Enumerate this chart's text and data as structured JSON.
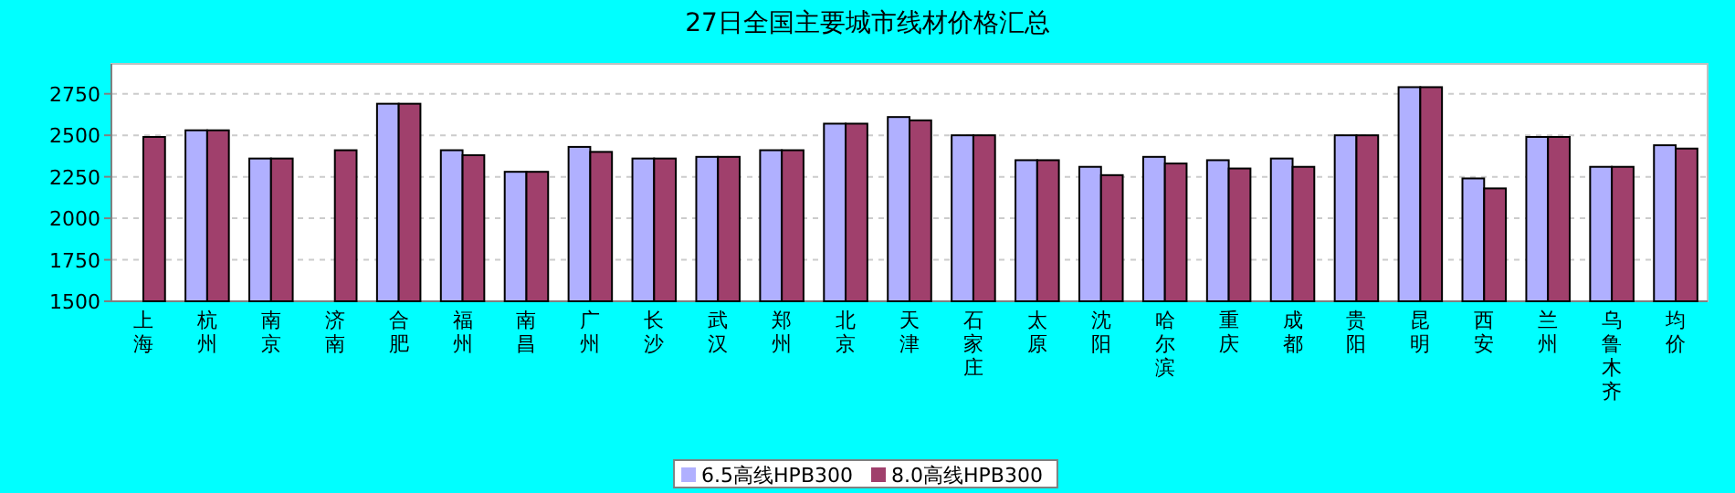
{
  "chart_data": {
    "type": "bar",
    "title": "27日全国主要城市线材价格汇总",
    "categories": [
      "上海",
      "杭州",
      "南京",
      "济南",
      "合肥",
      "福州",
      "南昌",
      "广州",
      "长沙",
      "武汉",
      "郑州",
      "北京",
      "天津",
      "石家庄",
      "太原",
      "沈阳",
      "哈尔滨",
      "重庆",
      "成都",
      "贵阳",
      "昆明",
      "西安",
      "兰州",
      "乌鲁木齐",
      "均价"
    ],
    "series": [
      {
        "name": "6.5高线HPB300",
        "color": "#b0b0ff",
        "values": [
          null,
          2530,
          2360,
          null,
          2690,
          2410,
          2280,
          2430,
          2360,
          2370,
          2410,
          2570,
          2610,
          2500,
          2350,
          2310,
          2370,
          2350,
          2360,
          2500,
          2790,
          2240,
          2490,
          2310,
          2440
        ]
      },
      {
        "name": "8.0高线HPB300",
        "color": "#a0406c",
        "values": [
          2490,
          2530,
          2360,
          2410,
          2690,
          2380,
          2280,
          2400,
          2360,
          2370,
          2410,
          2570,
          2590,
          2500,
          2350,
          2260,
          2330,
          2300,
          2310,
          2500,
          2790,
          2180,
          2490,
          2310,
          2420
        ]
      }
    ],
    "ylim": [
      1500,
      2930
    ],
    "yticks": [
      1500,
      1750,
      2000,
      2250,
      2500,
      2750
    ],
    "grid": "y",
    "legend": "bottom"
  }
}
